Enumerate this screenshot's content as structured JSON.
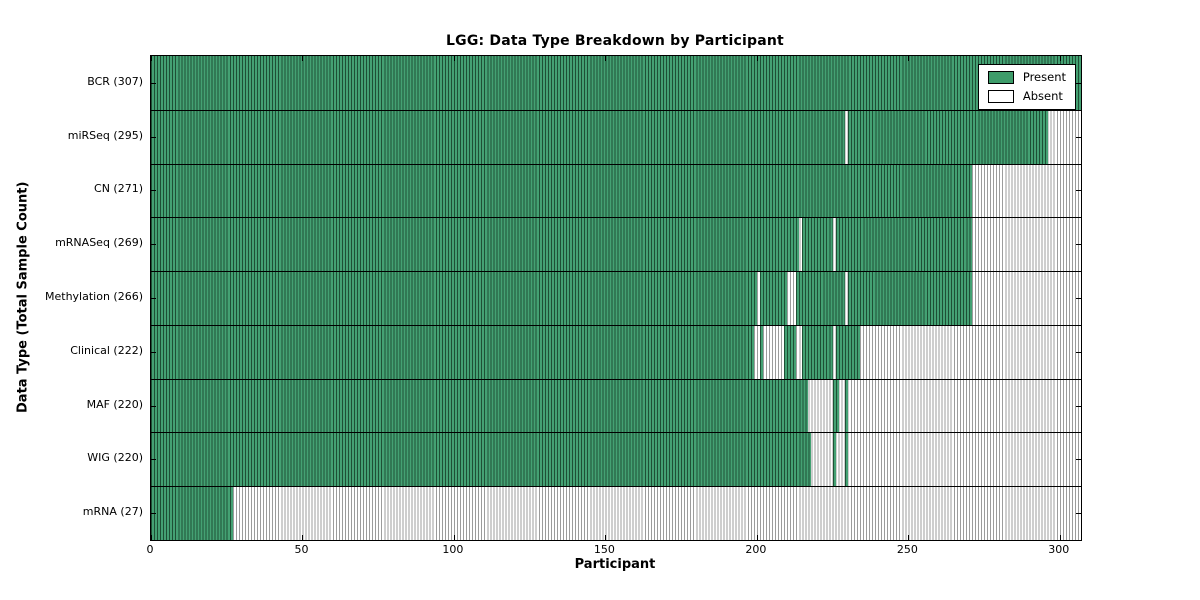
{
  "figure": {
    "title": "LGG: Data Type Breakdown by Participant",
    "xlabel": "Participant",
    "ylabel": "Data Type (Total Sample Count)"
  },
  "legend": {
    "items": [
      {
        "label": "Present",
        "color": "#3e9c6a"
      },
      {
        "label": "Absent",
        "color": "#ffffff"
      }
    ]
  },
  "colors": {
    "present_fill": "#44a173",
    "present_edge": "#1e5035",
    "absent_fill": "#ffffff",
    "absent_edge": "#9c9c9c",
    "axis": "#000000",
    "background": "#ffffff"
  },
  "chart_data": {
    "type": "heatmap",
    "title": "LGG: Data Type Breakdown by Participant",
    "xlabel": "Participant",
    "ylabel": "Data Type (Total Sample Count)",
    "x_range": [
      0,
      307
    ],
    "x_ticks": [
      0,
      50,
      100,
      150,
      200,
      250,
      300
    ],
    "n_participants": 307,
    "legend_position": "upper right",
    "legend_entries": [
      "Present",
      "Absent"
    ],
    "cell_semantics": "green segment = data type present for participant index range [start,end); white = absent",
    "rows": [
      {
        "label": "BCR (307)",
        "data_type": "BCR",
        "total_samples": 307,
        "present_segments": [
          [
            0,
            307
          ]
        ]
      },
      {
        "label": "miRSeq (295)",
        "data_type": "miRSeq",
        "total_samples": 295,
        "present_segments": [
          [
            0,
            229
          ],
          [
            230,
            296
          ]
        ]
      },
      {
        "label": "CN (271)",
        "data_type": "CN",
        "total_samples": 271,
        "present_segments": [
          [
            0,
            271
          ]
        ]
      },
      {
        "label": "mRNASeq (269)",
        "data_type": "mRNASeq",
        "total_samples": 269,
        "present_segments": [
          [
            0,
            214
          ],
          [
            215,
            225
          ],
          [
            226,
            271
          ]
        ]
      },
      {
        "label": "Methylation (266)",
        "data_type": "Methylation",
        "total_samples": 266,
        "present_segments": [
          [
            0,
            200
          ],
          [
            201,
            210
          ],
          [
            213,
            229
          ],
          [
            230,
            271
          ]
        ]
      },
      {
        "label": "Clinical (222)",
        "data_type": "Clinical",
        "total_samples": 222,
        "present_segments": [
          [
            0,
            199
          ],
          [
            201,
            202
          ],
          [
            209,
            213
          ],
          [
            215,
            225
          ],
          [
            226,
            234
          ]
        ]
      },
      {
        "label": "MAF (220)",
        "data_type": "MAF",
        "total_samples": 220,
        "present_segments": [
          [
            0,
            217
          ],
          [
            225,
            227
          ],
          [
            229,
            230
          ]
        ]
      },
      {
        "label": "WIG (220)",
        "data_type": "WIG",
        "total_samples": 220,
        "present_segments": [
          [
            0,
            218
          ],
          [
            225,
            226
          ],
          [
            229,
            230
          ]
        ]
      },
      {
        "label": "mRNA (27)",
        "data_type": "mRNA",
        "total_samples": 27,
        "present_segments": [
          [
            0,
            27
          ]
        ]
      }
    ]
  }
}
